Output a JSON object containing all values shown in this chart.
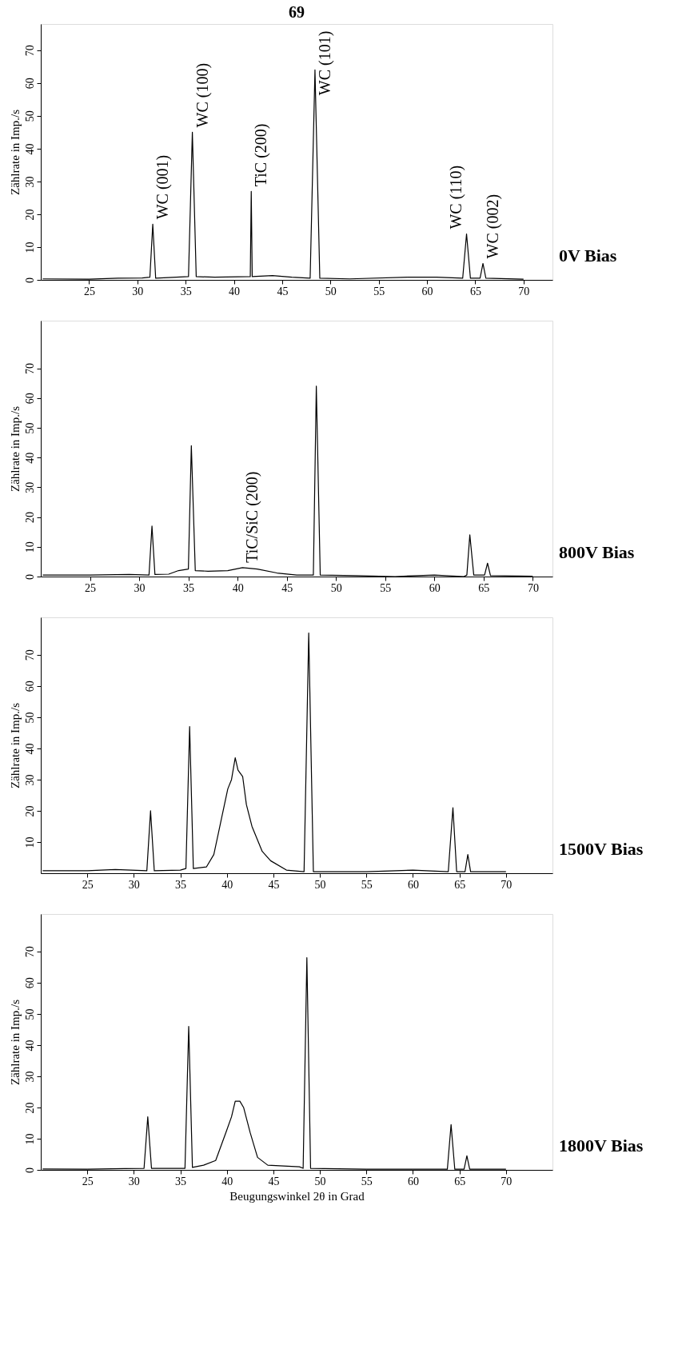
{
  "chart_data": [
    {
      "type": "line",
      "title": "69",
      "ylabel": "Zählrate in Imp./s",
      "xlim": [
        20,
        73
      ],
      "ylim": [
        0,
        78
      ],
      "xticks": [
        25,
        30,
        35,
        40,
        45,
        50,
        55,
        60,
        65,
        70
      ],
      "yticks": [
        0,
        10,
        20,
        30,
        40,
        50,
        60,
        70
      ],
      "series": [
        {
          "color": "#000000",
          "x": [
            20.2,
            25,
            28,
            30.5,
            31.3,
            31.6,
            31.9,
            35.3,
            35.7,
            36.1,
            38,
            41.7,
            41.8,
            41.9,
            44,
            46,
            47.9,
            48.4,
            48.9,
            52,
            58,
            61,
            63.7,
            64.1,
            64.5,
            65.5,
            65.8,
            66.1,
            70
          ],
          "values": [
            0.3,
            0.2,
            0.5,
            0.6,
            0.8,
            17,
            0.5,
            1,
            45,
            1,
            0.8,
            1,
            27,
            1,
            1.3,
            0.8,
            0.5,
            64,
            0.5,
            0.3,
            0.8,
            0.8,
            0.5,
            14,
            0.5,
            0.5,
            5,
            0.5,
            0.2
          ]
        }
      ],
      "annotations": [
        {
          "text": "WC (001)",
          "x": 31.6,
          "y": 17
        },
        {
          "text": "WC (100)",
          "x": 35.7,
          "y": 45
        },
        {
          "text": "TiC (200)",
          "x": 41.8,
          "y": 27
        },
        {
          "text": "WC (101)",
          "x": 48.4,
          "y": 64
        },
        {
          "text": "WC (110)",
          "x": 64.1,
          "y": 14
        },
        {
          "text": "WC (002)",
          "x": 65.8,
          "y": 5
        },
        "0V Bias"
      ]
    },
    {
      "type": "line",
      "ylabel": "Zählrate in Imp./s",
      "xlim": [
        20,
        72
      ],
      "ylim": [
        0,
        86
      ],
      "xticks": [
        25,
        30,
        35,
        40,
        45,
        50,
        55,
        60,
        65,
        70
      ],
      "yticks": [
        0,
        10,
        20,
        30,
        40,
        50,
        60,
        70
      ],
      "series": [
        {
          "color": "#000000",
          "x": [
            20.2,
            25,
            29,
            31,
            31.3,
            31.6,
            33,
            34,
            35,
            35.3,
            35.7,
            37,
            39,
            40.5,
            42,
            44,
            46,
            47.7,
            48.0,
            48.4,
            52,
            56,
            60,
            63,
            63.3,
            63.6,
            64.0,
            65.1,
            65.4,
            65.7,
            70
          ],
          "values": [
            0.5,
            0.5,
            0.7,
            0.5,
            17,
            0.7,
            0.8,
            2,
            2.5,
            44,
            2,
            1.8,
            2,
            3,
            2.5,
            1.2,
            0.5,
            0.5,
            64,
            0.5,
            0.3,
            0,
            0.5,
            0,
            0.5,
            14,
            0.5,
            0.5,
            4.5,
            0.3,
            0.1
          ]
        }
      ],
      "annotations": [
        {
          "text": "TiC/SiC (200)",
          "x": 40.5,
          "y": 3
        },
        "800V Bias"
      ]
    },
    {
      "type": "line",
      "ylabel": "Zählrate in Imp./s",
      "xlim": [
        20,
        75
      ],
      "ylim": [
        0,
        82
      ],
      "xticks": [
        25,
        30,
        35,
        40,
        45,
        50,
        55,
        60,
        65,
        70
      ],
      "yticks": [
        10,
        20,
        30,
        40,
        50,
        60,
        70
      ],
      "series": [
        {
          "color": "#000000",
          "x": [
            20.2,
            25,
            28,
            31.4,
            31.8,
            32.2,
            35,
            35.6,
            36.0,
            36.4,
            37.8,
            38.6,
            39.1,
            39.5,
            40.1,
            40.5,
            40.9,
            41.2,
            41.7,
            42.1,
            42.7,
            43.8,
            44.7,
            46.4,
            48.3,
            48.8,
            49.3,
            55,
            60,
            63.8,
            64.3,
            64.7,
            65.6,
            65.9,
            66.2,
            70
          ],
          "values": [
            0.8,
            0.8,
            1.2,
            0.8,
            20,
            0.8,
            1,
            1.5,
            47,
            1.5,
            2,
            6,
            13,
            18.6,
            27,
            30,
            37,
            33,
            31,
            22,
            15,
            7,
            4,
            1,
            0.5,
            77,
            0.5,
            0.5,
            1,
            0.5,
            21,
            0.5,
            0.5,
            6,
            0.5,
            0.5
          ]
        }
      ],
      "annotations": [
        "1500V Bias"
      ]
    },
    {
      "type": "line",
      "xlabel": "Beugungswinkel 2θ in Grad",
      "ylabel": "Zählrate in Imp./s",
      "xlim": [
        20,
        75
      ],
      "ylim": [
        0,
        82
      ],
      "xticks": [
        25,
        30,
        35,
        40,
        45,
        50,
        55,
        60,
        65,
        70
      ],
      "yticks": [
        0,
        10,
        20,
        30,
        40,
        50,
        60,
        70
      ],
      "series": [
        {
          "color": "#000000",
          "x": [
            20.2,
            25,
            29,
            31.1,
            31.5,
            31.9,
            35.5,
            35.9,
            36.3,
            37.5,
            38.8,
            39.9,
            40.5,
            40.9,
            41.4,
            41.8,
            42.5,
            43.3,
            44.4,
            47.8,
            48.2,
            48.6,
            49.0,
            55,
            60,
            63.7,
            64.1,
            64.5,
            65.5,
            65.8,
            66.1,
            70
          ],
          "values": [
            0.3,
            0.2,
            0.4,
            0.5,
            17,
            0.5,
            0.5,
            46,
            0.8,
            1.5,
            3,
            12,
            17,
            22,
            22,
            20,
            12,
            4,
            1.5,
            1,
            0.5,
            68,
            0.5,
            0.2,
            0.2,
            0.2,
            14.5,
            0.2,
            0.2,
            4.5,
            0.2,
            0.2
          ]
        }
      ],
      "annotations": [
        "1800V Bias"
      ]
    }
  ]
}
